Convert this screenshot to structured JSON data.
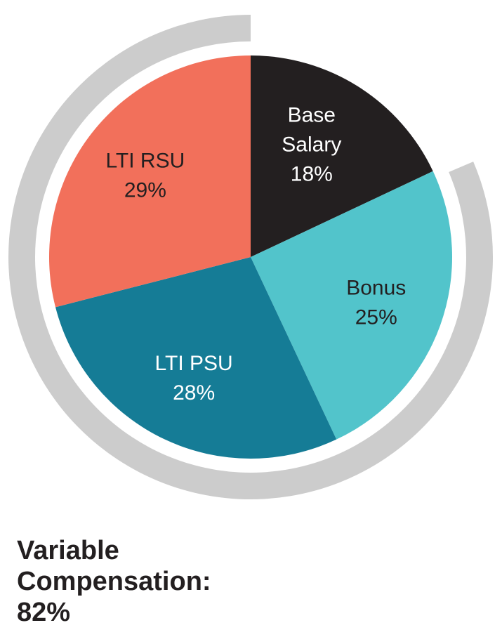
{
  "chart_data": {
    "type": "pie",
    "slices": [
      {
        "label_lines": [
          "Base",
          "Salary"
        ],
        "percent_text": "18%",
        "value": 18,
        "color": "#231f20",
        "text_color": "#ffffff"
      },
      {
        "label_lines": [
          "Bonus"
        ],
        "percent_text": "25%",
        "value": 25,
        "color": "#52c4cb",
        "text_color": "#231f20"
      },
      {
        "label_lines": [
          "LTI PSU"
        ],
        "percent_text": "28%",
        "value": 28,
        "color": "#157c96",
        "text_color": "#ffffff"
      },
      {
        "label_lines": [
          "LTI RSU"
        ],
        "percent_text": "29%",
        "value": 29,
        "color": "#f2705b",
        "text_color": "#231f20"
      }
    ],
    "outer_ring": {
      "label_lines": [
        "Variable",
        "Compensation:",
        "82%"
      ],
      "value": 82,
      "color": "#cccccc"
    }
  }
}
